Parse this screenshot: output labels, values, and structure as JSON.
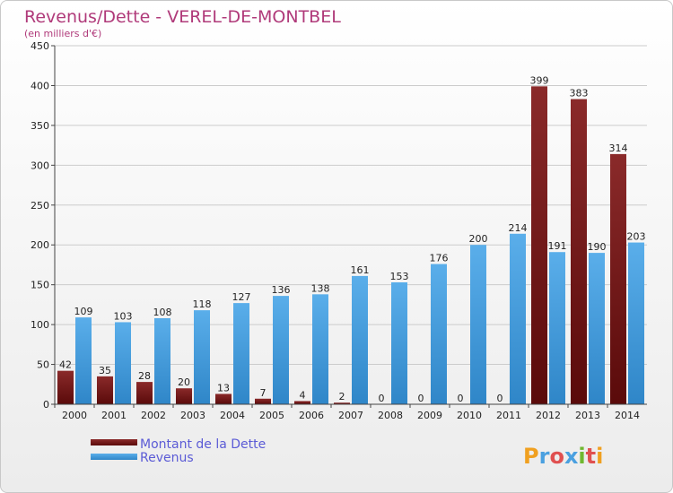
{
  "chart_data": {
    "type": "bar",
    "title": "Revenus/Dette - VEREL-DE-MONTBEL",
    "subtitle": "(en milliers d'€)",
    "categories": [
      "2000",
      "2001",
      "2002",
      "2003",
      "2004",
      "2005",
      "2006",
      "2007",
      "2008",
      "2009",
      "2010",
      "2011",
      "2012",
      "2013",
      "2014"
    ],
    "series": [
      {
        "name": "Montant de la Dette",
        "color": "#7a1c1c",
        "values": [
          42,
          35,
          28,
          20,
          13,
          7,
          4,
          2,
          0,
          0,
          0,
          0,
          399,
          383,
          314
        ]
      },
      {
        "name": "Revenus",
        "color": "#3d9be0",
        "values": [
          109,
          103,
          108,
          118,
          127,
          136,
          138,
          161,
          153,
          176,
          200,
          214,
          191,
          190,
          203
        ]
      }
    ],
    "ylim": [
      0,
      450
    ],
    "yticks": [
      0,
      50,
      100,
      150,
      200,
      250,
      300,
      350,
      400,
      450
    ],
    "grid": true,
    "legend": "bottom-left"
  },
  "brand": {
    "letters": [
      "P",
      "r",
      "o",
      "x",
      "i",
      "t",
      "i"
    ],
    "colors": [
      "#f0a020",
      "#4aa0e0",
      "#e05050",
      "#4aa0e0",
      "#70b830",
      "#e05050",
      "#f0a020"
    ]
  }
}
